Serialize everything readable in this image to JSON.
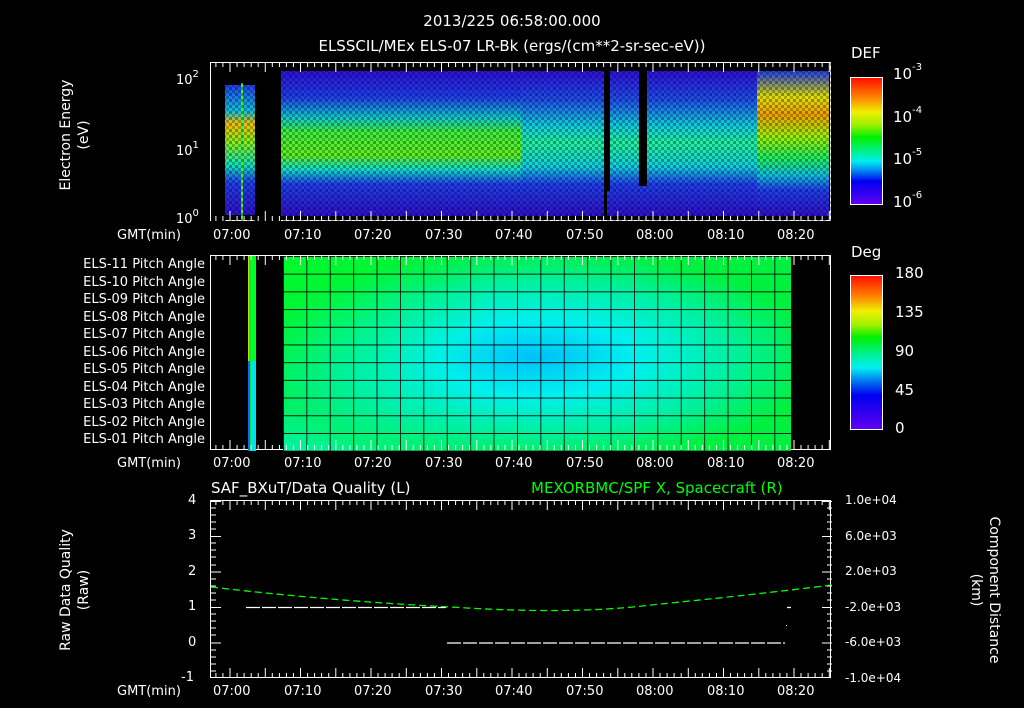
{
  "header": {
    "timestamp": "2013/225 06:58:00.000",
    "subtitle": "ELSSCIL/MEx ELS-07 LR-Bk  (ergs/(cm**2-sr-sec-eV))"
  },
  "colors": {
    "background": "#000000",
    "axis": "#ffffff",
    "spacecraft_line": "#00ff00",
    "quality_line": "#ffffff"
  },
  "time_axis": {
    "label": "GMT(min)",
    "ticks": [
      "07:00",
      "07:10",
      "07:20",
      "07:30",
      "07:40",
      "07:50",
      "08:00",
      "08:10",
      "08:20"
    ]
  },
  "panel_spectrogram": {
    "ylabel": "Electron Energy",
    "yunit": "(eV)",
    "yticks": [
      {
        "base": "10",
        "exp": "2"
      },
      {
        "base": "10",
        "exp": "1"
      },
      {
        "base": "10",
        "exp": "0"
      }
    ],
    "colorbar": {
      "title": "DEF",
      "ticks": [
        {
          "base": "10",
          "exp": "-3"
        },
        {
          "base": "10",
          "exp": "-4"
        },
        {
          "base": "10",
          "exp": "-5"
        },
        {
          "base": "10",
          "exp": "-6"
        }
      ]
    }
  },
  "panel_pitch": {
    "rows": [
      "ELS-11 Pitch Angle",
      "ELS-10 Pitch Angle",
      "ELS-09 Pitch Angle",
      "ELS-08 Pitch Angle",
      "ELS-07 Pitch Angle",
      "ELS-06 Pitch Angle",
      "ELS-05 Pitch Angle",
      "ELS-04 Pitch Angle",
      "ELS-03 Pitch Angle",
      "ELS-02 Pitch Angle",
      "ELS-01 Pitch Angle"
    ],
    "colorbar": {
      "title": "Deg",
      "ticks": [
        "180",
        "135",
        "90",
        "45",
        "0"
      ]
    }
  },
  "panel_quality": {
    "left_title": "SAF_BXuT/Data Quality (L)",
    "right_title": "MEXORBMC/SPF X, Spacecraft (R)",
    "ylabel_left": "Raw Data Quality",
    "yunit_left": "(Raw)",
    "ylabel_right": "Component Distance",
    "yunit_right": "(km)",
    "left_ticks": [
      "4",
      "3",
      "2",
      "1",
      "0",
      "-1"
    ],
    "right_ticks": [
      "1.0e+04",
      "6.0e+03",
      "2.0e+03",
      "-2.0e+03",
      "-6.0e+03",
      "-1.0e+04"
    ]
  },
  "chart_data": [
    {
      "type": "heatmap",
      "title": "ELSSCIL/MEx ELS-07 LR-Bk (ergs/(cm**2-sr-sec-eV))",
      "xlabel": "GMT(min)",
      "ylabel": "Electron Energy (eV)",
      "yscale": "log",
      "ylim": [
        1,
        150
      ],
      "x_range": [
        "06:58",
        "08:27"
      ],
      "colorbar": {
        "label": "DEF",
        "scale": "log",
        "range": [
          1e-06,
          0.001
        ]
      },
      "features": [
        {
          "time": "07:00-07:04",
          "desc": "bursts ~20-40 eV, DEF ~1e-4 to 3e-4"
        },
        {
          "time": "07:04-07:08",
          "desc": "data gap"
        },
        {
          "time": "07:08-07:30",
          "desc": "band centered ~15-20 eV, DEF ~1e-4"
        },
        {
          "time": "07:30-07:54",
          "desc": "band ~10-20 eV, DEF ~3e-5"
        },
        {
          "time": "07:54",
          "desc": "narrow data gap"
        },
        {
          "time": "07:57-07:59",
          "desc": "narrow data gap"
        },
        {
          "time": "08:00-08:16",
          "desc": "band ~10-20 eV, DEF ~3e-5 to 6e-5"
        },
        {
          "time": "08:17-08:26",
          "desc": "enhanced flux ~30-80 eV, DEF ~2e-4 to 4e-4"
        }
      ]
    },
    {
      "type": "heatmap",
      "title": "ELS Pitch Angle",
      "xlabel": "GMT(min)",
      "categories": [
        "ELS-11",
        "ELS-10",
        "ELS-09",
        "ELS-08",
        "ELS-07",
        "ELS-06",
        "ELS-05",
        "ELS-04",
        "ELS-03",
        "ELS-02",
        "ELS-01"
      ],
      "colorbar": {
        "label": "Deg",
        "range": [
          0,
          180
        ]
      },
      "coverage": [
        "07:03-07:04",
        "07:08-08:20"
      ],
      "features": [
        {
          "time": "07:08-07:25",
          "desc": "ELS-11..06 ~100 deg, ELS-01..03 ~75 deg"
        },
        {
          "time": "07:45-07:55",
          "desc": "ELS-07..05 minimum ~60 deg"
        },
        {
          "time": "08:15-08:20",
          "desc": "ELS-11 ~100 deg, ELS-01 ~85 deg"
        }
      ]
    },
    {
      "type": "line",
      "title": "SAF_BXuT/Data Quality (L) / MEXORBMC/SPF X, Spacecraft (R)",
      "xlabel": "GMT(min)",
      "x": [
        "06:58",
        "07:03",
        "07:10",
        "07:20",
        "07:30",
        "07:31",
        "07:40",
        "07:50",
        "08:00",
        "08:10",
        "08:20",
        "08:27"
      ],
      "series": [
        {
          "name": "Raw Data Quality (L)",
          "axis": "left",
          "color": "#ffffff",
          "values": [
            null,
            1,
            1,
            1,
            1,
            0,
            0,
            0,
            0,
            0,
            0,
            null
          ]
        },
        {
          "name": "SPF X Spacecraft (R, km)",
          "axis": "right",
          "color": "#00ff00",
          "values": [
            300,
            100,
            -150,
            -500,
            -900,
            -950,
            -1200,
            -1350,
            -1300,
            -900,
            -200,
            300
          ]
        }
      ],
      "ylim_left": [
        -1,
        4
      ],
      "ylim_right": [
        -10000,
        10000
      ],
      "ylabel_left": "Raw Data Quality (Raw)",
      "ylabel_right": "Component Distance (km)"
    }
  ]
}
